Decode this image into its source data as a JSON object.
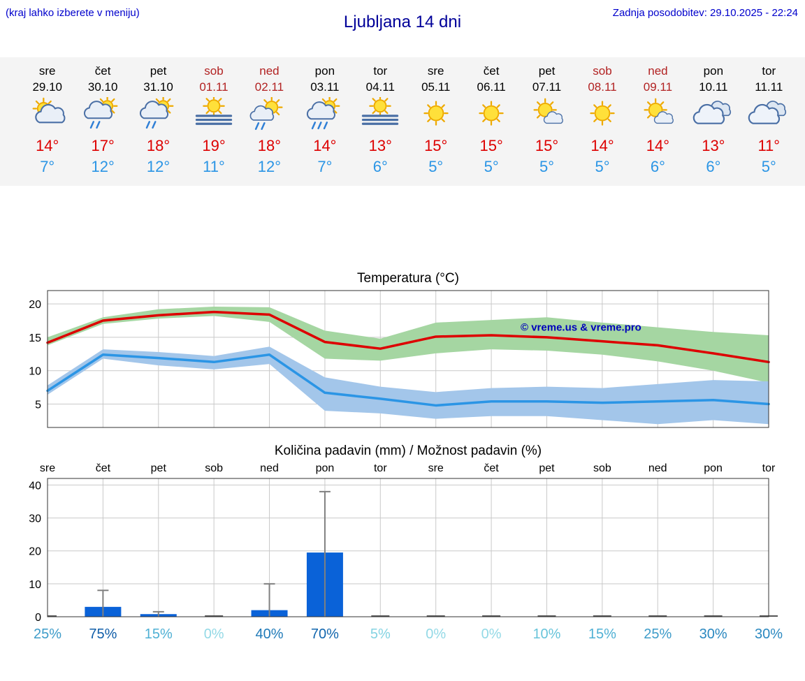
{
  "header": {
    "left_note": "(kraj lahko izberete v meniju)",
    "title": "Ljubljana 14 dni",
    "last_update": "Zadnja posodobitev: 29.10.2025 - 22:24"
  },
  "colors": {
    "note_blue": "#0000cc",
    "title_blue": "#000099",
    "weekend_red": "#b22222",
    "weekday_black": "#000000",
    "high_red": "#dd0000",
    "low_blue": "#2b95e5",
    "watermark_blue": "#0000bb",
    "strip_bg": "#f4f4f4"
  },
  "forecast": {
    "days": [
      {
        "name": "sre",
        "date": "29.10",
        "weekend": false,
        "icon": "sun-cloud",
        "high": "14°",
        "low": "7°"
      },
      {
        "name": "čet",
        "date": "30.10",
        "weekend": false,
        "icon": "sun-cloud-showers",
        "high": "17°",
        "low": "12°"
      },
      {
        "name": "pet",
        "date": "31.10",
        "weekend": false,
        "icon": "sun-cloud-showers",
        "high": "18°",
        "low": "12°"
      },
      {
        "name": "sob",
        "date": "01.11",
        "weekend": true,
        "icon": "fog-sun",
        "high": "19°",
        "low": "11°"
      },
      {
        "name": "ned",
        "date": "02.11",
        "weekend": true,
        "icon": "sun-showers",
        "high": "18°",
        "low": "12°"
      },
      {
        "name": "pon",
        "date": "03.11",
        "weekend": false,
        "icon": "sun-cloud-rain",
        "high": "14°",
        "low": "7°"
      },
      {
        "name": "tor",
        "date": "04.11",
        "weekend": false,
        "icon": "fog-sun",
        "high": "13°",
        "low": "6°"
      },
      {
        "name": "sre",
        "date": "05.11",
        "weekend": false,
        "icon": "sunny",
        "high": "15°",
        "low": "5°"
      },
      {
        "name": "čet",
        "date": "06.11",
        "weekend": false,
        "icon": "sunny",
        "high": "15°",
        "low": "5°"
      },
      {
        "name": "pet",
        "date": "07.11",
        "weekend": false,
        "icon": "sun-small-cloud",
        "high": "15°",
        "low": "5°"
      },
      {
        "name": "sob",
        "date": "08.11",
        "weekend": true,
        "icon": "sunny",
        "high": "14°",
        "low": "5°"
      },
      {
        "name": "ned",
        "date": "09.11",
        "weekend": true,
        "icon": "sun-small-cloud",
        "high": "14°",
        "low": "6°"
      },
      {
        "name": "pon",
        "date": "10.11",
        "weekend": false,
        "icon": "cloudy",
        "high": "13°",
        "low": "6°"
      },
      {
        "name": "tor",
        "date": "11.11",
        "weekend": false,
        "icon": "cloudy",
        "high": "11°",
        "low": "5°"
      }
    ]
  },
  "chart_data": [
    {
      "type": "line",
      "title": "Temperatura (°C)",
      "x_labels": [
        "29.10",
        "30.10",
        "31.10",
        "01.11",
        "02.11",
        "03.11",
        "04.11",
        "05.11",
        "06.11",
        "07.11",
        "08.11",
        "09.11",
        "10.11",
        "11.11"
      ],
      "ylim": [
        1.5,
        22
      ],
      "yticks": [
        5,
        10,
        15,
        20
      ],
      "grid": true,
      "legend": "none",
      "watermark": "© vreme.us & vreme.pro",
      "series": [
        {
          "name": "max-temperature",
          "color": "#dd0000",
          "values": [
            14.2,
            17.5,
            18.3,
            18.8,
            18.4,
            14.3,
            13.3,
            15.1,
            15.3,
            15.0,
            14.4,
            13.8,
            12.6,
            11.3
          ],
          "band": {
            "color": "#a5d6a2",
            "upper": [
              15.0,
              18.0,
              19.2,
              19.6,
              19.5,
              16.0,
              14.8,
              17.2,
              17.6,
              18.0,
              17.2,
              16.5,
              15.8,
              15.3
            ],
            "lower": [
              13.8,
              17.0,
              17.8,
              18.2,
              17.3,
              11.8,
              11.5,
              12.6,
              13.2,
              13.0,
              12.4,
              11.4,
              10.0,
              8.2
            ]
          }
        },
        {
          "name": "min-temperature",
          "color": "#2b95e5",
          "values": [
            7.0,
            12.4,
            11.9,
            11.3,
            12.4,
            6.7,
            5.8,
            4.8,
            5.4,
            5.4,
            5.2,
            5.4,
            5.6,
            5.0
          ],
          "band": {
            "color": "#a3c6ea",
            "upper": [
              7.8,
              13.2,
              12.8,
              12.2,
              13.6,
              9.0,
              7.6,
              6.8,
              7.4,
              7.6,
              7.4,
              8.0,
              8.6,
              8.4
            ],
            "lower": [
              6.4,
              11.8,
              10.8,
              10.2,
              11.0,
              4.0,
              3.6,
              2.8,
              3.2,
              3.2,
              2.6,
              2.0,
              2.6,
              2.0
            ]
          }
        }
      ]
    },
    {
      "type": "bar",
      "title": "Količina padavin (mm) / Možnost padavin (%)",
      "categories": [
        "sre",
        "čet",
        "pet",
        "sob",
        "ned",
        "pon",
        "tor",
        "sre",
        "čet",
        "pet",
        "sob",
        "ned",
        "pon",
        "tor"
      ],
      "values": [
        0,
        3,
        0.8,
        0,
        2,
        19.5,
        0,
        0,
        0,
        0,
        0,
        0,
        0,
        0
      ],
      "whisker_max": [
        0,
        8,
        1.5,
        0,
        10,
        38,
        0,
        0,
        0,
        0,
        0,
        0,
        0,
        0
      ],
      "bar_color": "#0a62d8",
      "whisker_color": "#808080",
      "ylim": [
        0,
        42
      ],
      "yticks": [
        0,
        10,
        20,
        30,
        40
      ],
      "grid": true,
      "probabilities": [
        {
          "label": "25%",
          "color": "#3e9cc9"
        },
        {
          "label": "75%",
          "color": "#0f5da8"
        },
        {
          "label": "15%",
          "color": "#4fb0d4"
        },
        {
          "label": "0%",
          "color": "#93d9e6"
        },
        {
          "label": "40%",
          "color": "#1f7ab8"
        },
        {
          "label": "70%",
          "color": "#1166ae"
        },
        {
          "label": "5%",
          "color": "#84d3e2"
        },
        {
          "label": "0%",
          "color": "#93d9e6"
        },
        {
          "label": "0%",
          "color": "#93d9e6"
        },
        {
          "label": "10%",
          "color": "#68c4da"
        },
        {
          "label": "15%",
          "color": "#4fb0d4"
        },
        {
          "label": "25%",
          "color": "#3e9cc9"
        },
        {
          "label": "30%",
          "color": "#2a88c0"
        },
        {
          "label": "30%",
          "color": "#2a88c0"
        }
      ]
    }
  ]
}
